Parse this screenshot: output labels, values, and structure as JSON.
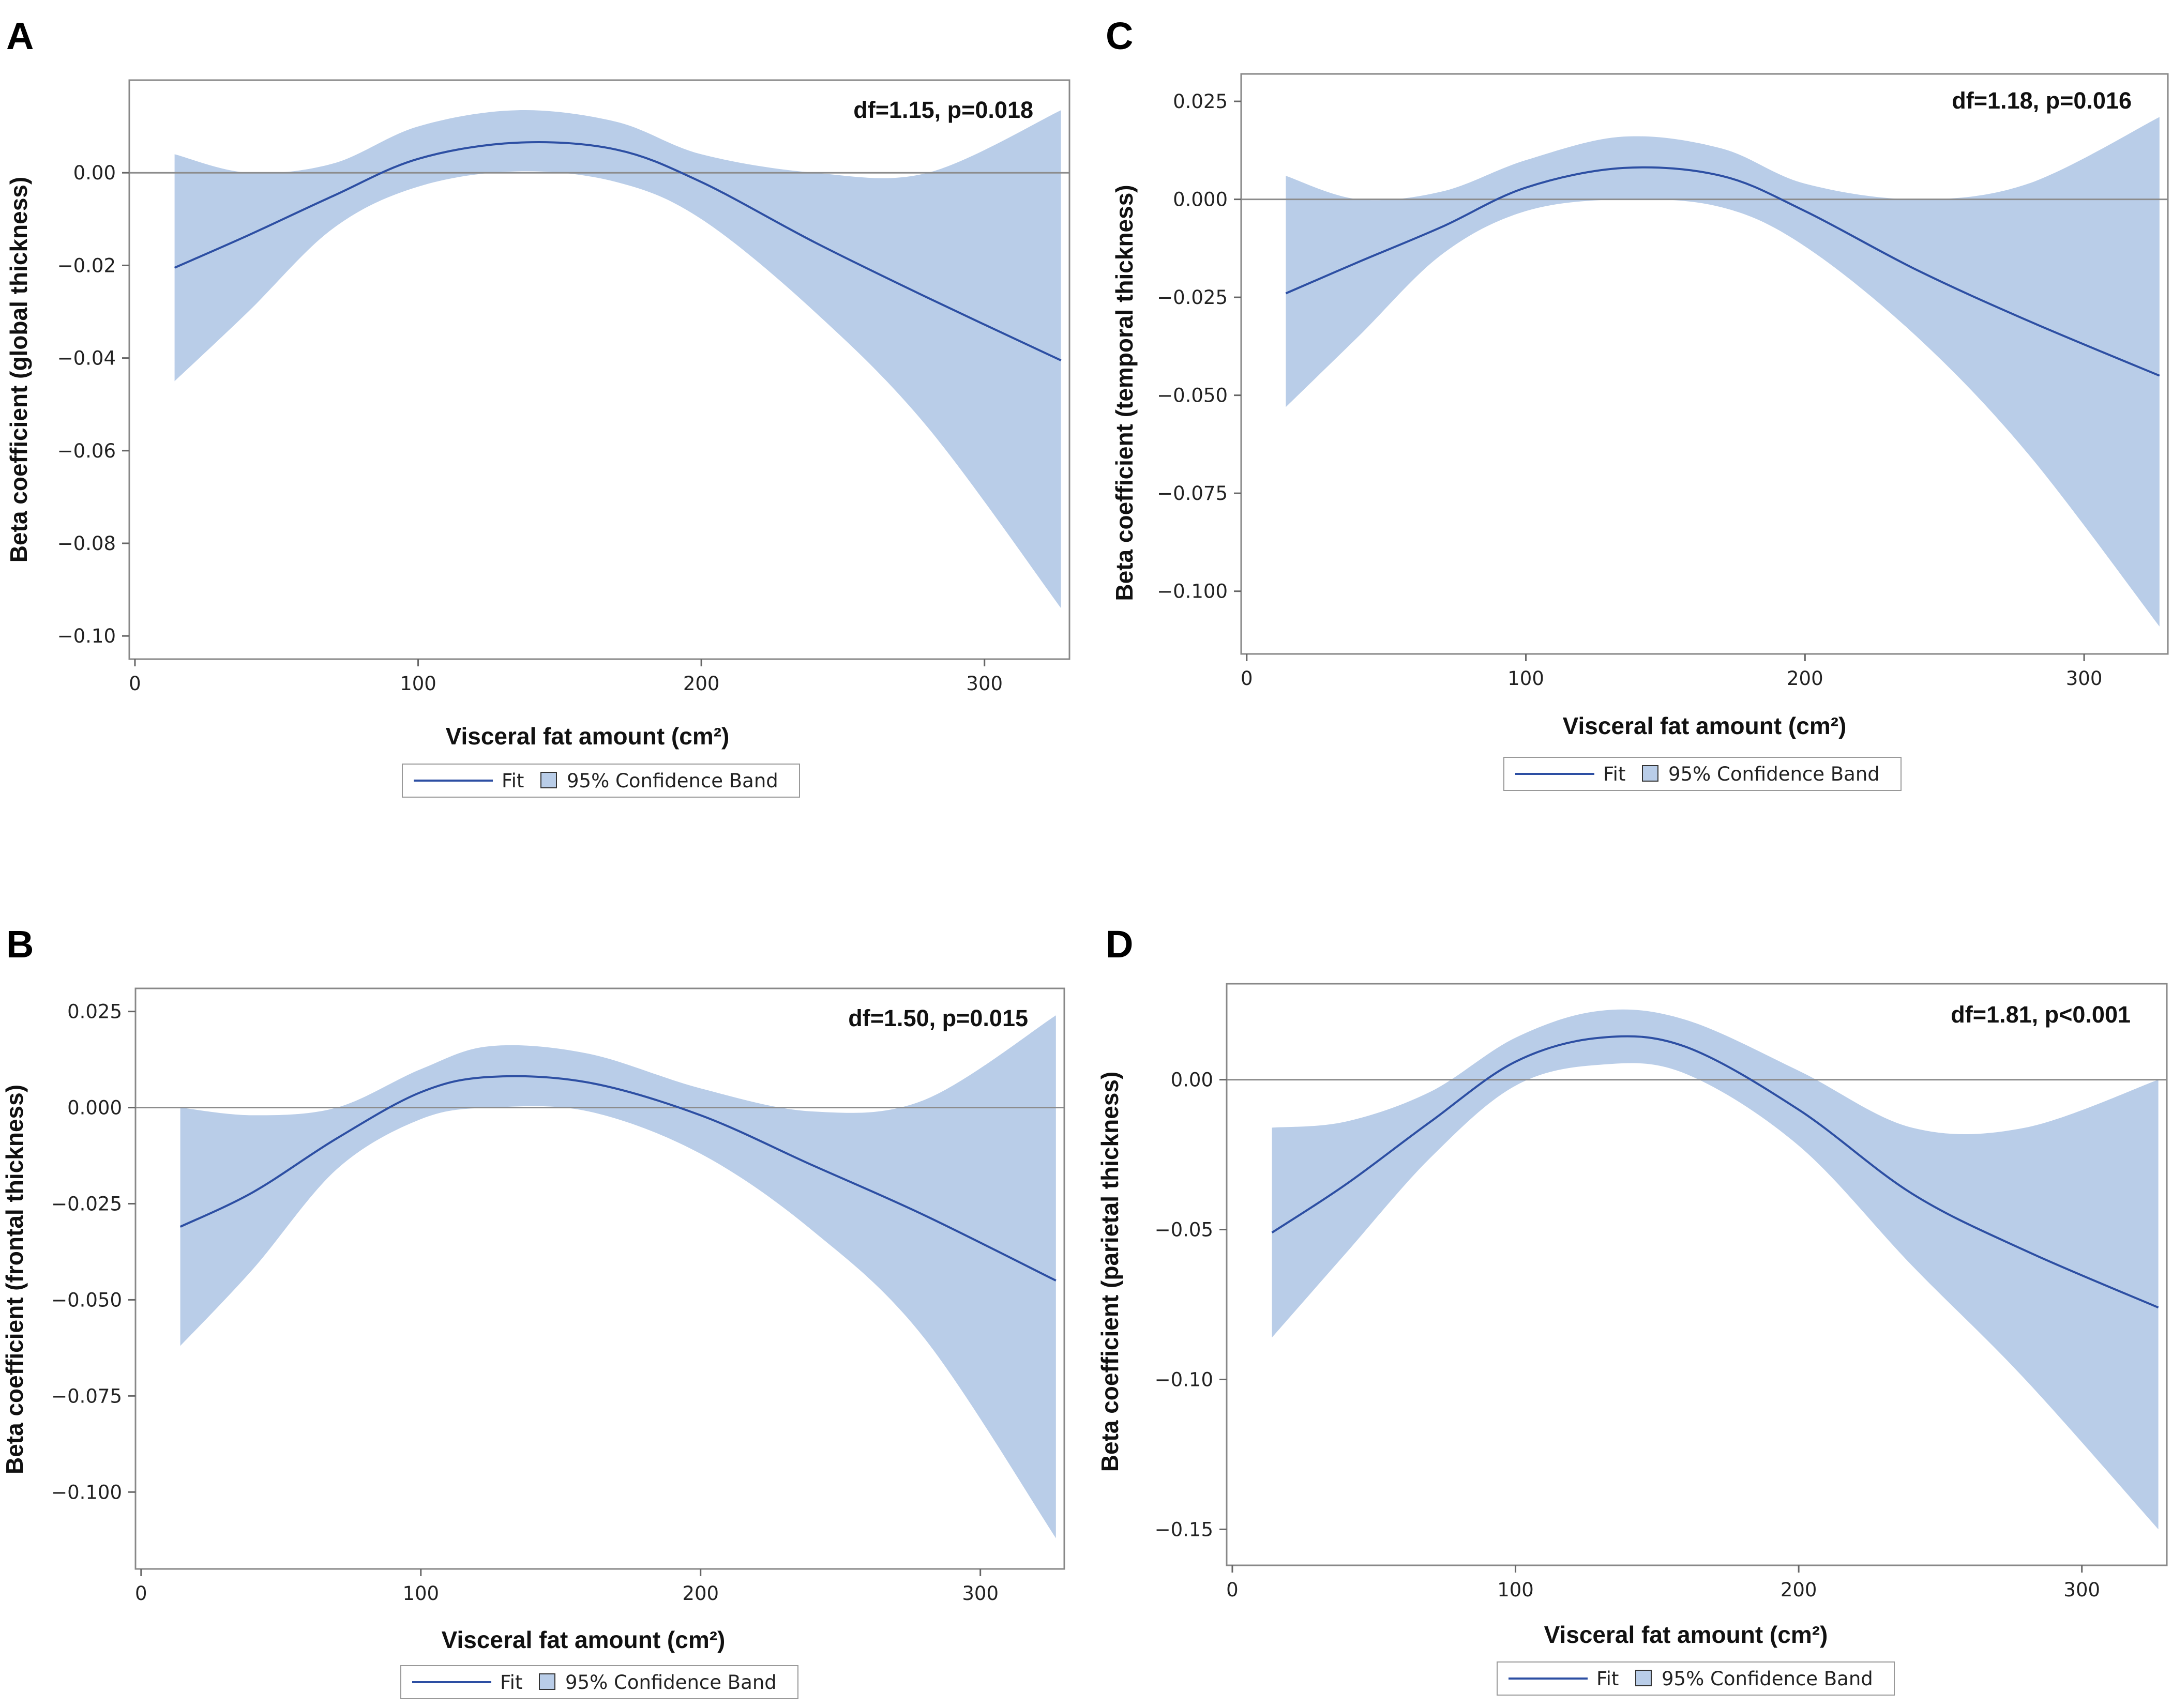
{
  "chart_data": [
    {
      "panel": "A",
      "type": "line",
      "annotation": "df=1.15, p=0.018",
      "xlabel": "Visceral fat amount (cm²)",
      "ylabel": "Beta coefficient (global thickness)",
      "xlim": [
        -2,
        330
      ],
      "ylim": [
        -0.105,
        0.02
      ],
      "xticks": [
        0,
        100,
        200,
        300
      ],
      "yticks": [
        0.0,
        -0.02,
        -0.04,
        -0.06,
        -0.08,
        -0.1
      ],
      "ytick_labels": [
        "0.00",
        "−0.02",
        "−0.04",
        "−0.06",
        "−0.08",
        "−0.10"
      ],
      "x": [
        14,
        40,
        70,
        100,
        135,
        170,
        200,
        240,
        280,
        327
      ],
      "fit": [
        -0.0205,
        -0.0135,
        -0.005,
        0.003,
        0.0065,
        0.005,
        -0.002,
        -0.015,
        -0.027,
        -0.0405
      ],
      "lower": [
        -0.045,
        -0.03,
        -0.012,
        -0.003,
        0.0003,
        -0.002,
        -0.01,
        -0.03,
        -0.055,
        -0.094
      ],
      "upper": [
        0.004,
        0.0,
        0.002,
        0.01,
        0.0135,
        0.011,
        0.004,
        0.0,
        0.0,
        0.0135
      ],
      "legend": [
        "Fit",
        "95% Confidence Band"
      ]
    },
    {
      "panel": "B",
      "type": "line",
      "annotation": "df=1.50, p=0.015",
      "xlabel": "Visceral fat amount (cm²)",
      "ylabel": "Beta coefficient (frontal thickness)",
      "xlim": [
        -2,
        330
      ],
      "ylim": [
        -0.12,
        0.031
      ],
      "xticks": [
        0,
        100,
        200,
        300
      ],
      "yticks": [
        0.025,
        0.0,
        -0.025,
        -0.05,
        -0.075,
        -0.1
      ],
      "ytick_labels": [
        "0.025",
        "0.000",
        "−0.025",
        "−0.050",
        "−0.075",
        "−0.100"
      ],
      "x": [
        14,
        40,
        70,
        100,
        125,
        160,
        200,
        240,
        280,
        327
      ],
      "fit": [
        -0.031,
        -0.022,
        -0.008,
        0.004,
        0.008,
        0.0065,
        -0.002,
        -0.015,
        -0.028,
        -0.045
      ],
      "lower": [
        -0.062,
        -0.042,
        -0.016,
        -0.003,
        0.0,
        -0.001,
        -0.012,
        -0.032,
        -0.06,
        -0.112
      ],
      "upper": [
        0.0,
        -0.002,
        0.0,
        0.01,
        0.016,
        0.014,
        0.005,
        -0.001,
        0.002,
        0.024
      ],
      "legend": [
        "Fit",
        "95% Confidence Band"
      ]
    },
    {
      "panel": "C",
      "type": "line",
      "annotation": "df=1.18, p=0.016",
      "xlabel": "Visceral fat amount (cm²)",
      "ylabel": "Beta coefficient (temporal thickness)",
      "xlim": [
        -2,
        330
      ],
      "ylim": [
        -0.116,
        0.032
      ],
      "xticks": [
        0,
        100,
        200,
        300
      ],
      "yticks": [
        0.025,
        0.0,
        -0.025,
        -0.05,
        -0.075,
        -0.1
      ],
      "ytick_labels": [
        "0.025",
        "0.000",
        "−0.025",
        "−0.050",
        "−0.075",
        "−0.100"
      ],
      "x": [
        14,
        40,
        70,
        100,
        135,
        170,
        200,
        240,
        280,
        327
      ],
      "fit": [
        -0.024,
        -0.016,
        -0.007,
        0.003,
        0.008,
        0.006,
        -0.003,
        -0.018,
        -0.031,
        -0.045
      ],
      "lower": [
        -0.053,
        -0.035,
        -0.014,
        -0.003,
        0.0,
        -0.002,
        -0.012,
        -0.035,
        -0.065,
        -0.109
      ],
      "upper": [
        0.006,
        0.0,
        0.002,
        0.01,
        0.016,
        0.013,
        0.004,
        0.0,
        0.004,
        0.021
      ],
      "legend": [
        "Fit",
        "95% Confidence Band"
      ]
    },
    {
      "panel": "D",
      "type": "line",
      "annotation": "df=1.81, p<0.001",
      "xlabel": "Visceral fat amount (cm²)",
      "ylabel": "Beta coefficient (parietal thickness)",
      "xlim": [
        -2,
        330
      ],
      "ylim": [
        -0.162,
        0.032
      ],
      "xticks": [
        0,
        100,
        200,
        300
      ],
      "yticks": [
        0.0,
        -0.05,
        -0.1,
        -0.15
      ],
      "ytick_labels": [
        "0.00",
        "−0.05",
        "−0.10",
        "−0.15"
      ],
      "x": [
        14,
        40,
        70,
        100,
        130,
        160,
        200,
        240,
        280,
        327
      ],
      "fit": [
        -0.051,
        -0.035,
        -0.014,
        0.006,
        0.014,
        0.011,
        -0.01,
        -0.038,
        -0.057,
        -0.076
      ],
      "lower": [
        -0.086,
        -0.058,
        -0.026,
        -0.002,
        0.005,
        0.002,
        -0.022,
        -0.062,
        -0.1,
        -0.15
      ],
      "upper": [
        -0.016,
        -0.014,
        -0.004,
        0.014,
        0.023,
        0.02,
        0.003,
        -0.016,
        -0.016,
        0.0
      ],
      "legend": [
        "Fit",
        "95% Confidence Band"
      ]
    }
  ]
}
